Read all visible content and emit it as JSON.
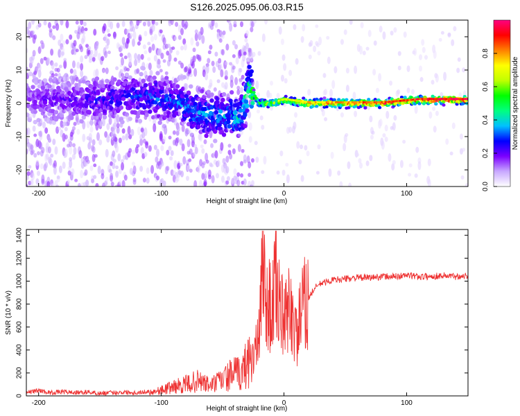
{
  "figure_title": "S126.2025.095.06.03.R15",
  "chart_data": [
    {
      "type": "heatmap",
      "xlabel": "Height of straight line (km)",
      "ylabel": "Frequency (Hz)",
      "xlim": [
        -210,
        150
      ],
      "ylim": [
        -25,
        25
      ],
      "x_ticks": [
        -200,
        -100,
        0,
        100
      ],
      "y_ticks": [
        -20,
        -10,
        0,
        10,
        20
      ],
      "grid": false,
      "colorbar": {
        "label": "Normalized spectral amplitude",
        "range": [
          0,
          1
        ],
        "ticks": [
          "0.0",
          "0.2",
          "0.4",
          "0.6",
          "0.8"
        ],
        "colormap": [
          "#ffffff",
          "#c8a8ff",
          "#7b00ff",
          "#0000ff",
          "#00c0ff",
          "#00ff80",
          "#00ff00",
          "#c0ff00",
          "#ffff00",
          "#ff8000",
          "#ff0000",
          "#ff0080"
        ]
      },
      "ridge": {
        "x": [
          -210,
          -190,
          -170,
          -150,
          -130,
          -110,
          -90,
          -70,
          -50,
          -35,
          -28,
          -20,
          -10,
          0,
          20,
          50,
          80,
          110,
          150
        ],
        "center_freq": [
          1,
          1,
          1,
          1,
          2,
          2,
          1,
          -3,
          -4,
          -4,
          5,
          0,
          0,
          1,
          0,
          0,
          0,
          1,
          1
        ],
        "amplitude": [
          0.15,
          0.2,
          0.2,
          0.25,
          0.25,
          0.3,
          0.3,
          0.35,
          0.35,
          0.4,
          0.5,
          0.6,
          0.65,
          0.7,
          0.75,
          0.8,
          0.85,
          0.9,
          0.95
        ]
      }
    },
    {
      "type": "line",
      "xlabel": "Height of straight line (km)",
      "ylabel": "SNR (10 * v/v)",
      "xlim": [
        -210,
        150
      ],
      "ylim": [
        0,
        1450
      ],
      "x_ticks": [
        -200,
        -100,
        0,
        100
      ],
      "y_ticks": [
        0,
        200,
        400,
        600,
        800,
        1000,
        1200,
        1400
      ],
      "grid": false,
      "line_color": "#ee3333",
      "series": [
        {
          "x": [
            -210,
            -200,
            -190,
            -180,
            -170,
            -160,
            -150,
            -140,
            -130,
            -120,
            -110,
            -100,
            -90,
            -80,
            -70,
            -60,
            -50,
            -40,
            -35,
            -30,
            -25,
            -20,
            -17,
            -15,
            -12,
            -10,
            -8,
            -5,
            0,
            5,
            10,
            15,
            20,
            25,
            30,
            40,
            50,
            60,
            70,
            80,
            90,
            100,
            110,
            120,
            130,
            140,
            150
          ],
          "y": [
            20,
            40,
            20,
            30,
            20,
            25,
            15,
            20,
            25,
            20,
            30,
            50,
            80,
            100,
            130,
            90,
            140,
            200,
            180,
            300,
            350,
            500,
            1430,
            700,
            900,
            600,
            1000,
            900,
            600,
            800,
            500,
            750,
            850,
            940,
            980,
            1010,
            1020,
            1030,
            1030,
            1040,
            1040,
            1050,
            1040,
            1040,
            1050,
            1040,
            1050
          ]
        }
      ]
    }
  ]
}
